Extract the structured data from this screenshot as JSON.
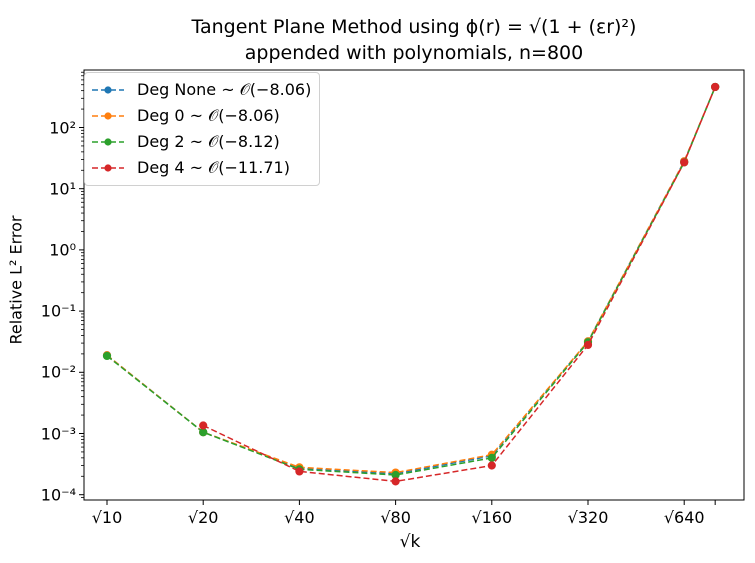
{
  "chart_data": {
    "type": "line",
    "title_line1": "Tangent Plane Method using ϕ(r) = √(1 + (εr)²)",
    "title_line2": "appended with polynomials, n=800",
    "xlabel": "√k",
    "ylabel": "Relative L² Error",
    "x_tick_labels": [
      "√10",
      "√20",
      "√40",
      "√80",
      "√160",
      "√320",
      "√640"
    ],
    "y_tick_labels": [
      "10⁻⁴",
      "10⁻³",
      "10⁻²",
      "10⁻¹",
      "10⁰",
      "10¹",
      "10²"
    ],
    "y_scale": "log",
    "ylim": [
      8e-05,
      1000
    ],
    "grid": false,
    "legend_placement": "top-left",
    "series": [
      {
        "name": "Deg None ~ 𝒪(−8.06)",
        "color": "#1f77b4",
        "x": [
          10,
          20,
          40,
          80,
          160,
          320,
          640,
          800
        ],
        "y": [
          0.019,
          0.00105,
          0.00027,
          0.00022,
          0.00043,
          0.032,
          28,
          460
        ]
      },
      {
        "name": "Deg 0 ~ 𝒪(−8.06)",
        "color": "#ff7f0e",
        "x": [
          10,
          20,
          40,
          80,
          160,
          320,
          640,
          800
        ],
        "y": [
          0.019,
          0.00105,
          0.00028,
          0.00023,
          0.00045,
          0.032,
          28,
          460
        ]
      },
      {
        "name": "Deg 2 ~ 𝒪(−8.12)",
        "color": "#2ca02c",
        "x": [
          10,
          20,
          40,
          80,
          160,
          320,
          640,
          800
        ],
        "y": [
          0.0185,
          0.00105,
          0.00026,
          0.00021,
          0.0004,
          0.031,
          27,
          460
        ]
      },
      {
        "name": "Deg 4 ~ 𝒪(−11.71)",
        "color": "#d62728",
        "x": [
          20,
          40,
          80,
          160,
          320,
          640,
          800
        ],
        "y": [
          0.00135,
          0.00024,
          0.000165,
          0.0003,
          0.028,
          27,
          460
        ]
      }
    ]
  }
}
